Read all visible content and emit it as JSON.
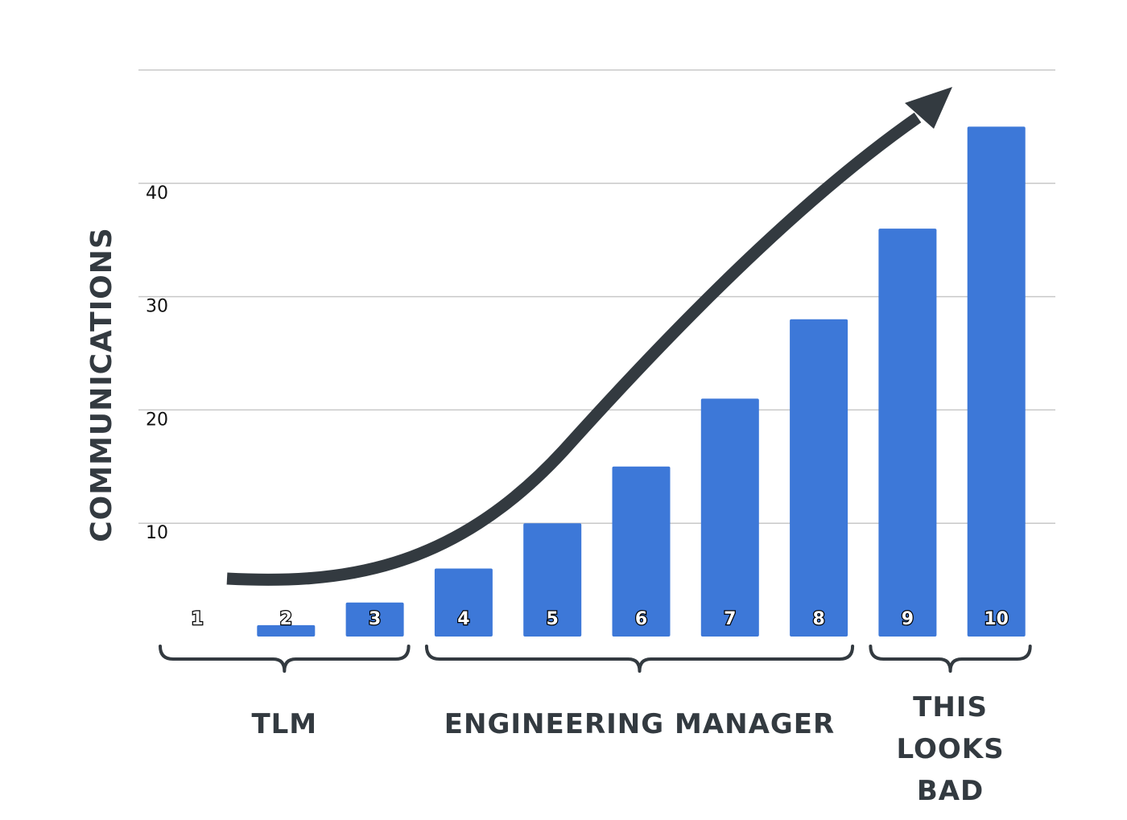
{
  "chart_data": {
    "type": "bar",
    "ylabel": "COMMUNICATIONS",
    "xlabel": "",
    "title": "",
    "categories": [
      "1",
      "2",
      "3",
      "4",
      "5",
      "6",
      "7",
      "8",
      "9",
      "10"
    ],
    "values": [
      0,
      1,
      3,
      6,
      10,
      15,
      21,
      28,
      36,
      45
    ],
    "ylim": [
      0,
      50
    ],
    "yticks": [
      "10",
      "20",
      "30",
      "40"
    ],
    "grid": true,
    "bar_color": "#3d78d8",
    "arrow_color": "#333a40",
    "trend_arrow": true,
    "groups": [
      {
        "label_lines": [
          "TLM"
        ],
        "from": 1,
        "to": 3
      },
      {
        "label_lines": [
          "ENGINEERING MANAGER"
        ],
        "from": 4,
        "to": 8
      },
      {
        "label_lines": [
          "THIS",
          "LOOKS",
          "BAD"
        ],
        "from": 9,
        "to": 10
      }
    ]
  }
}
